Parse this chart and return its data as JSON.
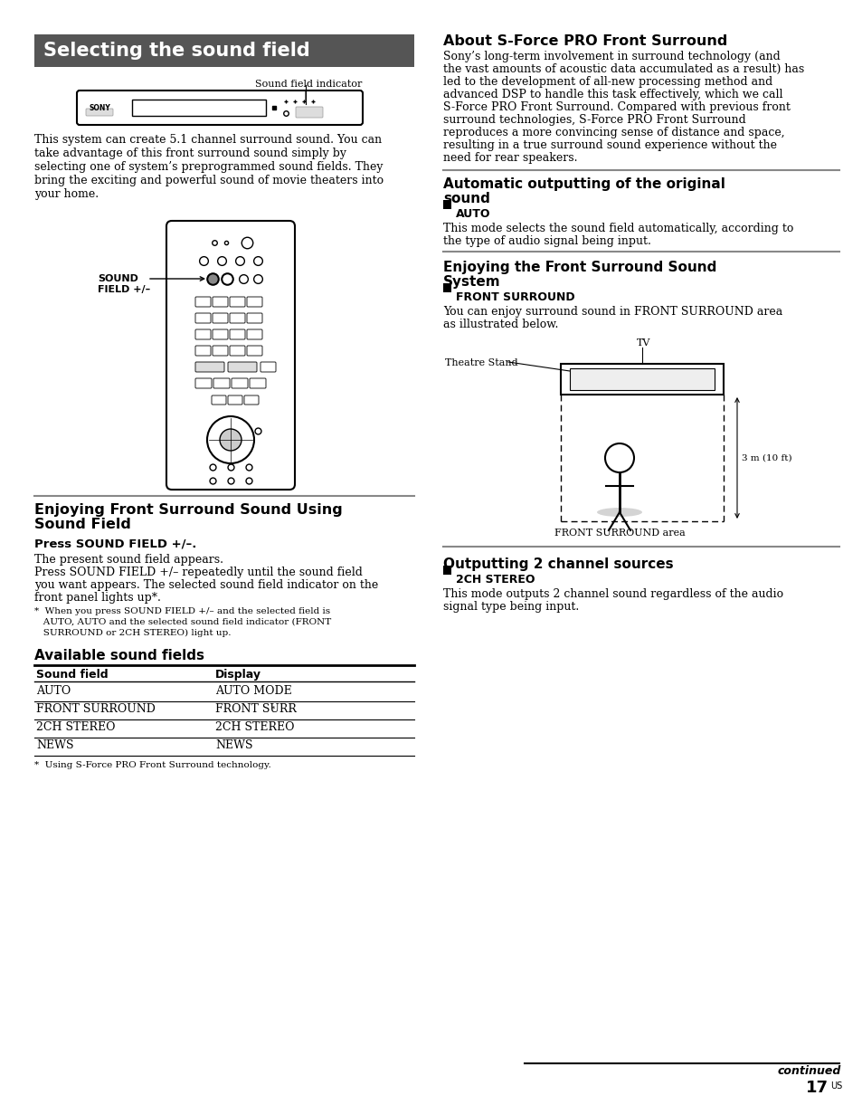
{
  "bg_color": "#ffffff",
  "page_number": "17",
  "title_header": "Selecting the sound field",
  "title_header_bg": "#555555",
  "title_header_color": "#ffffff",
  "sound_field_indicator_label": "Sound field indicator",
  "intro_lines": [
    "This system can create 5.1 channel surround sound. You can",
    "take advantage of this front surround sound simply by",
    "selecting one of system’s preprogrammed sound fields. They",
    "bring the exciting and powerful sound of movie theaters into",
    "your home."
  ],
  "sound_field_label_line1": "SOUND",
  "sound_field_label_line2": "FIELD +/–",
  "section1_title_line1": "Enjoying Front Surround Sound Using",
  "section1_title_line2": "Sound Field",
  "step_bold": "Press SOUND FIELD +/–.",
  "step_text1": "The present sound field appears.",
  "step_text2_lines": [
    "Press SOUND FIELD +/– repeatedly until the sound field",
    "you want appears. The selected sound field indicator on the",
    "front panel lights up*."
  ],
  "footnote1_lines": [
    "*  When you press SOUND FIELD +/– and the selected field is",
    "   AUTO, AUTO and the selected sound field indicator (FRONT",
    "   SURROUND or 2CH STEREO) light up."
  ],
  "available_title": "Available sound fields",
  "table_headers": [
    "Sound field",
    "Display"
  ],
  "table_rows": [
    [
      "AUTO",
      "AUTO MODE"
    ],
    [
      "FRONT SURROUND",
      "FRONT SURR*"
    ],
    [
      "2CH STEREO",
      "2CH STEREO"
    ],
    [
      "NEWS",
      "NEWS"
    ]
  ],
  "table_footnote": "*  Using S-Force PRO Front Surround technology.",
  "right_section1_title": "About S-Force PRO Front Surround",
  "right_section1_lines": [
    "Sony’s long-term involvement in surround technology (and",
    "the vast amounts of acoustic data accumulated as a result) has",
    "led to the development of all-new processing method and",
    "advanced DSP to handle this task effectively, which we call",
    "S-Force PRO Front Surround. Compared with previous front",
    "surround technologies, S-Force PRO Front Surround",
    "reproduces a more convincing sense of distance and space,",
    "resulting in a true surround sound experience without the",
    "need for rear speakers."
  ],
  "right_section2_title_line1": "Automatic outputting of the original",
  "right_section2_title_line2": "sound",
  "right_section2_sub": "AUTO",
  "right_section2_lines": [
    "This mode selects the sound field automatically, according to",
    "the type of audio signal being input."
  ],
  "right_section3_title_line1": "Enjoying the Front Surround Sound",
  "right_section3_title_line2": "System",
  "right_section3_sub": "FRONT SURROUND",
  "right_section3_lines": [
    "You can enjoy surround sound in FRONT SURROUND area",
    "as illustrated below."
  ],
  "tv_label": "TV",
  "theatre_label": "Theatre Stand",
  "front_surround_label": "FRONT SURROUND area",
  "distance_label": "3 m (10 ft)",
  "right_section4_title": "Outputting 2 channel sources",
  "right_section4_sub": "2CH STEREO",
  "right_section4_lines": [
    "This mode outputs 2 channel sound regardless of the audio",
    "signal type being input."
  ],
  "continued_text": "continued",
  "page_num": "17",
  "page_suffix": "US"
}
